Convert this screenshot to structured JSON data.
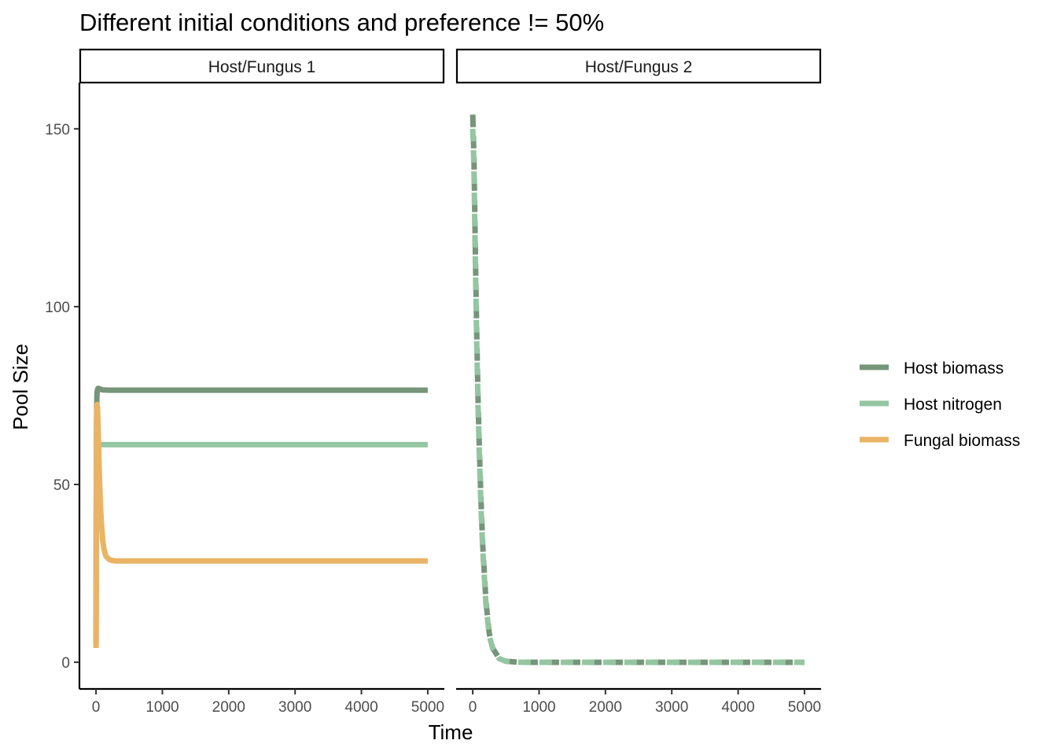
{
  "chart_data": {
    "type": "line",
    "title": "Different initial conditions and preference != 50%",
    "xlabel": "Time",
    "ylabel": "Pool Size",
    "xlim": [
      -250,
      5250
    ],
    "ylim": [
      -7.5,
      163
    ],
    "x_ticks": [
      0,
      1000,
      2000,
      3000,
      4000,
      5000
    ],
    "x_tick_labels": [
      "0",
      "1000",
      "2000",
      "3000",
      "4000",
      "5000"
    ],
    "y_ticks": [
      0,
      50,
      100,
      150
    ],
    "y_tick_labels": [
      "0",
      "50",
      "100",
      "150"
    ],
    "grid": false,
    "legend_position": "right",
    "legend": [
      {
        "label": "Host biomass",
        "color": "#76957a"
      },
      {
        "label": "Host nitrogen",
        "color": "#94c6a1"
      },
      {
        "label": "Fungal biomass",
        "color": "#eab466"
      }
    ],
    "panels": [
      {
        "label": "Host/Fungus 1",
        "series": [
          {
            "name": "Host biomass",
            "color": "#76957a",
            "dash": "solid",
            "x": [
              0,
              3,
              6,
              10,
              15,
              20,
              30,
              40,
              60,
              100,
              200,
              300,
              500,
              1000,
              2000,
              3000,
              4000,
              5000
            ],
            "y": [
              5,
              40,
              62,
              72,
              75.5,
              76.5,
              77,
              77,
              76.8,
              76.6,
              76.5,
              76.5,
              76.5,
              76.5,
              76.5,
              76.5,
              76.5,
              76.5
            ]
          },
          {
            "name": "Host nitrogen",
            "color": "#94c6a1",
            "dash": "solid",
            "x": [
              0,
              3,
              6,
              10,
              15,
              20,
              30,
              40,
              60,
              100,
              200,
              500,
              1000,
              2000,
              3000,
              4000,
              5000
            ],
            "y": [
              13,
              40,
              54,
              59,
              60.5,
              61,
              61.2,
              61.3,
              61.3,
              61.2,
              61.2,
              61.2,
              61.2,
              61.2,
              61.2,
              61.2,
              61.2
            ]
          },
          {
            "name": "Fungal biomass",
            "color": "#eab466",
            "dash": "solid",
            "x": [
              0,
              2,
              4,
              7,
              10,
              15,
              20,
              25,
              30,
              40,
              50,
              60,
              70,
              80,
              100,
              120,
              150,
              200,
              250,
              300,
              400,
              500,
              1000,
              2000,
              3000,
              4000,
              5000
            ],
            "y": [
              4,
              12,
              35,
              60,
              70,
              72.5,
              72,
              70,
              67,
              60,
              53,
              47.5,
              43,
              39.5,
              34.5,
              31.8,
              29.8,
              28.9,
              28.6,
              28.5,
              28.5,
              28.5,
              28.5,
              28.5,
              28.5,
              28.5,
              28.5
            ]
          }
        ]
      },
      {
        "label": "Host/Fungus 2",
        "series": [
          {
            "name": "Host biomass",
            "color": "#76957a",
            "dash": "dashed",
            "x": [
              0,
              10,
              20,
              40,
              60,
              80,
              100,
              120,
              150,
              200,
              250,
              300,
              400,
              500,
              700,
              1000,
              2000,
              3000,
              4000,
              5000
            ],
            "y": [
              154,
              148,
              140,
              115,
              93,
              74,
              60,
              48,
              33,
              17,
              8,
              4,
              1,
              0.3,
              0,
              0,
              0,
              0,
              0,
              0
            ]
          },
          {
            "name": "Host nitrogen",
            "color": "#94c6a1",
            "dash": "dashed",
            "x": [
              0,
              10,
              20,
              40,
              60,
              80,
              100,
              120,
              150,
              200,
              250,
              300,
              400,
              500,
              700,
              1000,
              2000,
              3000,
              4000,
              5000
            ],
            "y": [
              150,
              145,
              137,
              112,
              90,
              72,
              58,
              46,
              32,
              16,
              7.5,
              3.8,
              1,
              0.3,
              0,
              0,
              0,
              0,
              0,
              0
            ]
          }
        ]
      }
    ]
  }
}
